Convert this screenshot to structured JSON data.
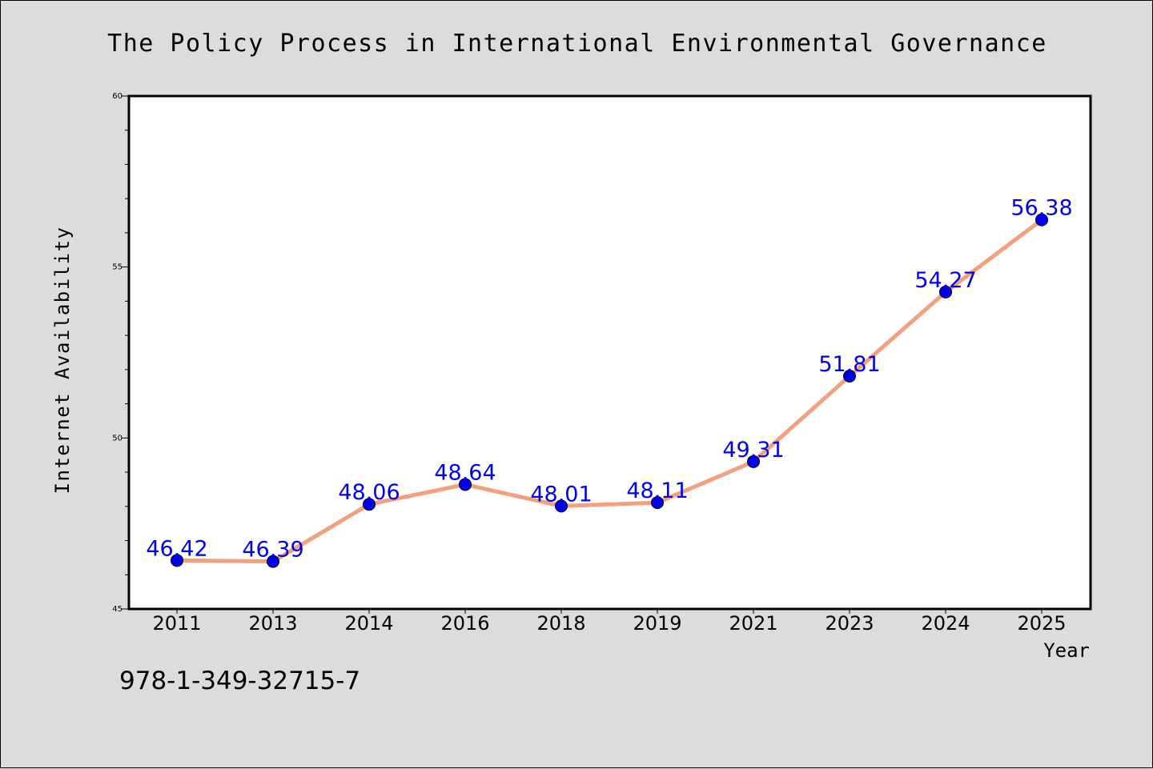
{
  "chart_data": {
    "type": "line",
    "title": "The Policy Process in International Environmental Governance",
    "xlabel": "Year",
    "ylabel": "Internet Availability",
    "categories": [
      "2011",
      "2013",
      "2014",
      "2016",
      "2018",
      "2019",
      "2021",
      "2023",
      "2024",
      "2025"
    ],
    "series": [
      {
        "values": [
          46.42,
          46.39,
          48.06,
          48.64,
          48.01,
          48.11,
          49.31,
          51.81,
          54.27,
          56.38
        ],
        "labels": [
          "46.42",
          "46.39",
          "48.06",
          "48.64",
          "48.01",
          "48.11",
          "49.31",
          "51.81",
          "54.27",
          "56.38"
        ],
        "line_color": "#f4a07e",
        "marker_color": "#0000ee",
        "label_color": "#0000ee"
      }
    ],
    "ylim": [
      45,
      60
    ],
    "yticks": [
      45,
      50,
      55,
      60
    ],
    "ytick_labels": [
      "45",
      "50",
      "55",
      "60"
    ],
    "grid": false,
    "background": "#ffffff",
    "figure_background": "#dcdcdc"
  },
  "footer": {
    "isbn": "978-1-349-32715-7"
  }
}
